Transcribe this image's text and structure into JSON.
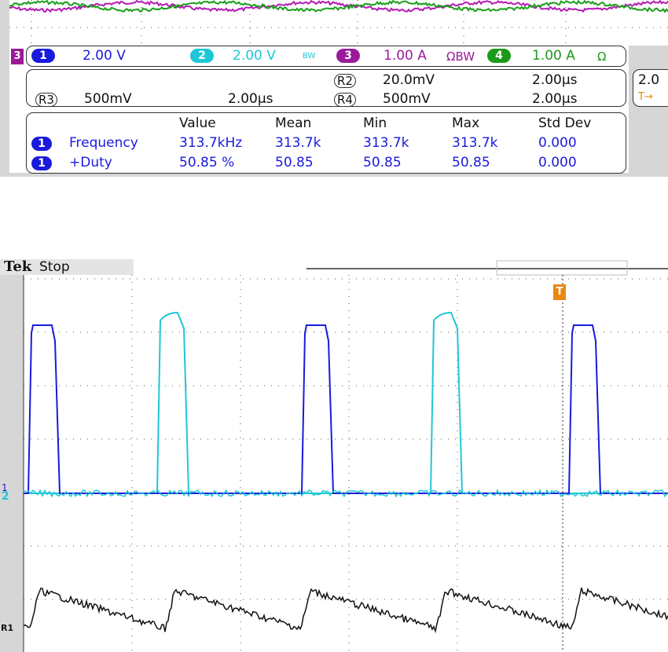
{
  "top_panel": {
    "side_marker": "3",
    "channels": [
      {
        "badge": "1",
        "scale": "2.00 V"
      },
      {
        "badge": "2",
        "scale": "2.00 V",
        "flag": "BW"
      },
      {
        "badge": "3",
        "scale": "1.00 A",
        "flag": "ΩBW"
      },
      {
        "badge": "4",
        "scale": "1.00 A",
        "flag": "Ω"
      }
    ],
    "references": [
      {
        "id": "R2",
        "scale": "20.0mV",
        "time": "2.00µs"
      },
      {
        "id": "R3",
        "scale": "500mV",
        "time": "2.00µs"
      },
      {
        "id": "R4",
        "scale": "500mV",
        "time": "2.00µs"
      }
    ],
    "side_box": {
      "text": "2.0",
      "trigger": "T→"
    },
    "measurements": {
      "headers": [
        "Value",
        "Mean",
        "Min",
        "Max",
        "Std Dev"
      ],
      "rows": [
        {
          "channel": "1",
          "name": "Frequency",
          "cells": [
            "313.7kHz",
            "313.7k",
            "313.7k",
            "313.7k",
            "0.000"
          ]
        },
        {
          "channel": "1",
          "name": "+Duty",
          "cells": [
            "50.85 %",
            "50.85",
            "50.85",
            "50.85",
            "0.000"
          ]
        }
      ]
    }
  },
  "bottom_panel": {
    "brand": "Tek",
    "status": "Stop",
    "trigger_marker": "T",
    "markers": [
      "1",
      "2",
      "R1"
    ]
  }
}
